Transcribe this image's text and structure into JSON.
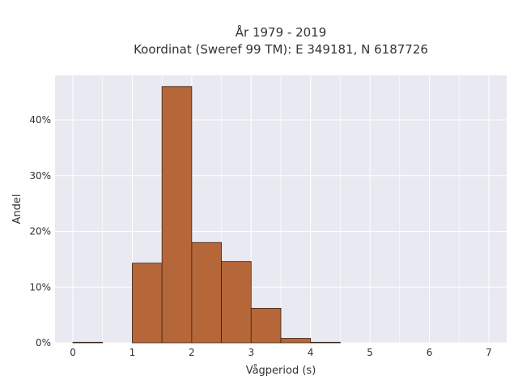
{
  "chart_data": {
    "type": "bar",
    "title_line1": "År 1979 - 2019",
    "title_line2": "Koordinat (Sweref 99 TM): E 349181, N 6187726",
    "xlabel": "Vågperiod (s)",
    "ylabel": "Andel",
    "xlim": [
      -0.3,
      7.3
    ],
    "ylim": [
      0,
      0.48
    ],
    "xticks": [
      0,
      1,
      2,
      3,
      4,
      5,
      6,
      7
    ],
    "xtick_labels": [
      "0",
      "1",
      "2",
      "3",
      "4",
      "5",
      "6",
      "7"
    ],
    "yticks": [
      0,
      0.1,
      0.2,
      0.3,
      0.4
    ],
    "ytick_labels": [
      "0%",
      "10%",
      "20%",
      "30%",
      "40%"
    ],
    "bin_width": 0.5,
    "bins": [
      {
        "x0": 0.0,
        "x1": 0.5,
        "value": 0.001
      },
      {
        "x0": 0.5,
        "x1": 1.0,
        "value": 0.0
      },
      {
        "x0": 1.0,
        "x1": 1.5,
        "value": 0.143
      },
      {
        "x0": 1.5,
        "x1": 2.0,
        "value": 0.46
      },
      {
        "x0": 2.0,
        "x1": 2.5,
        "value": 0.18
      },
      {
        "x0": 2.5,
        "x1": 3.0,
        "value": 0.146
      },
      {
        "x0": 3.0,
        "x1": 3.5,
        "value": 0.062
      },
      {
        "x0": 3.5,
        "x1": 4.0,
        "value": 0.008
      },
      {
        "x0": 4.0,
        "x1": 4.5,
        "value": 0.001
      }
    ],
    "grid": true,
    "colors": {
      "plot_background": "#e9e9f1",
      "bar_fill": "#b5673a",
      "bar_edge": "#3a2418",
      "grid": "#ffffff"
    }
  }
}
